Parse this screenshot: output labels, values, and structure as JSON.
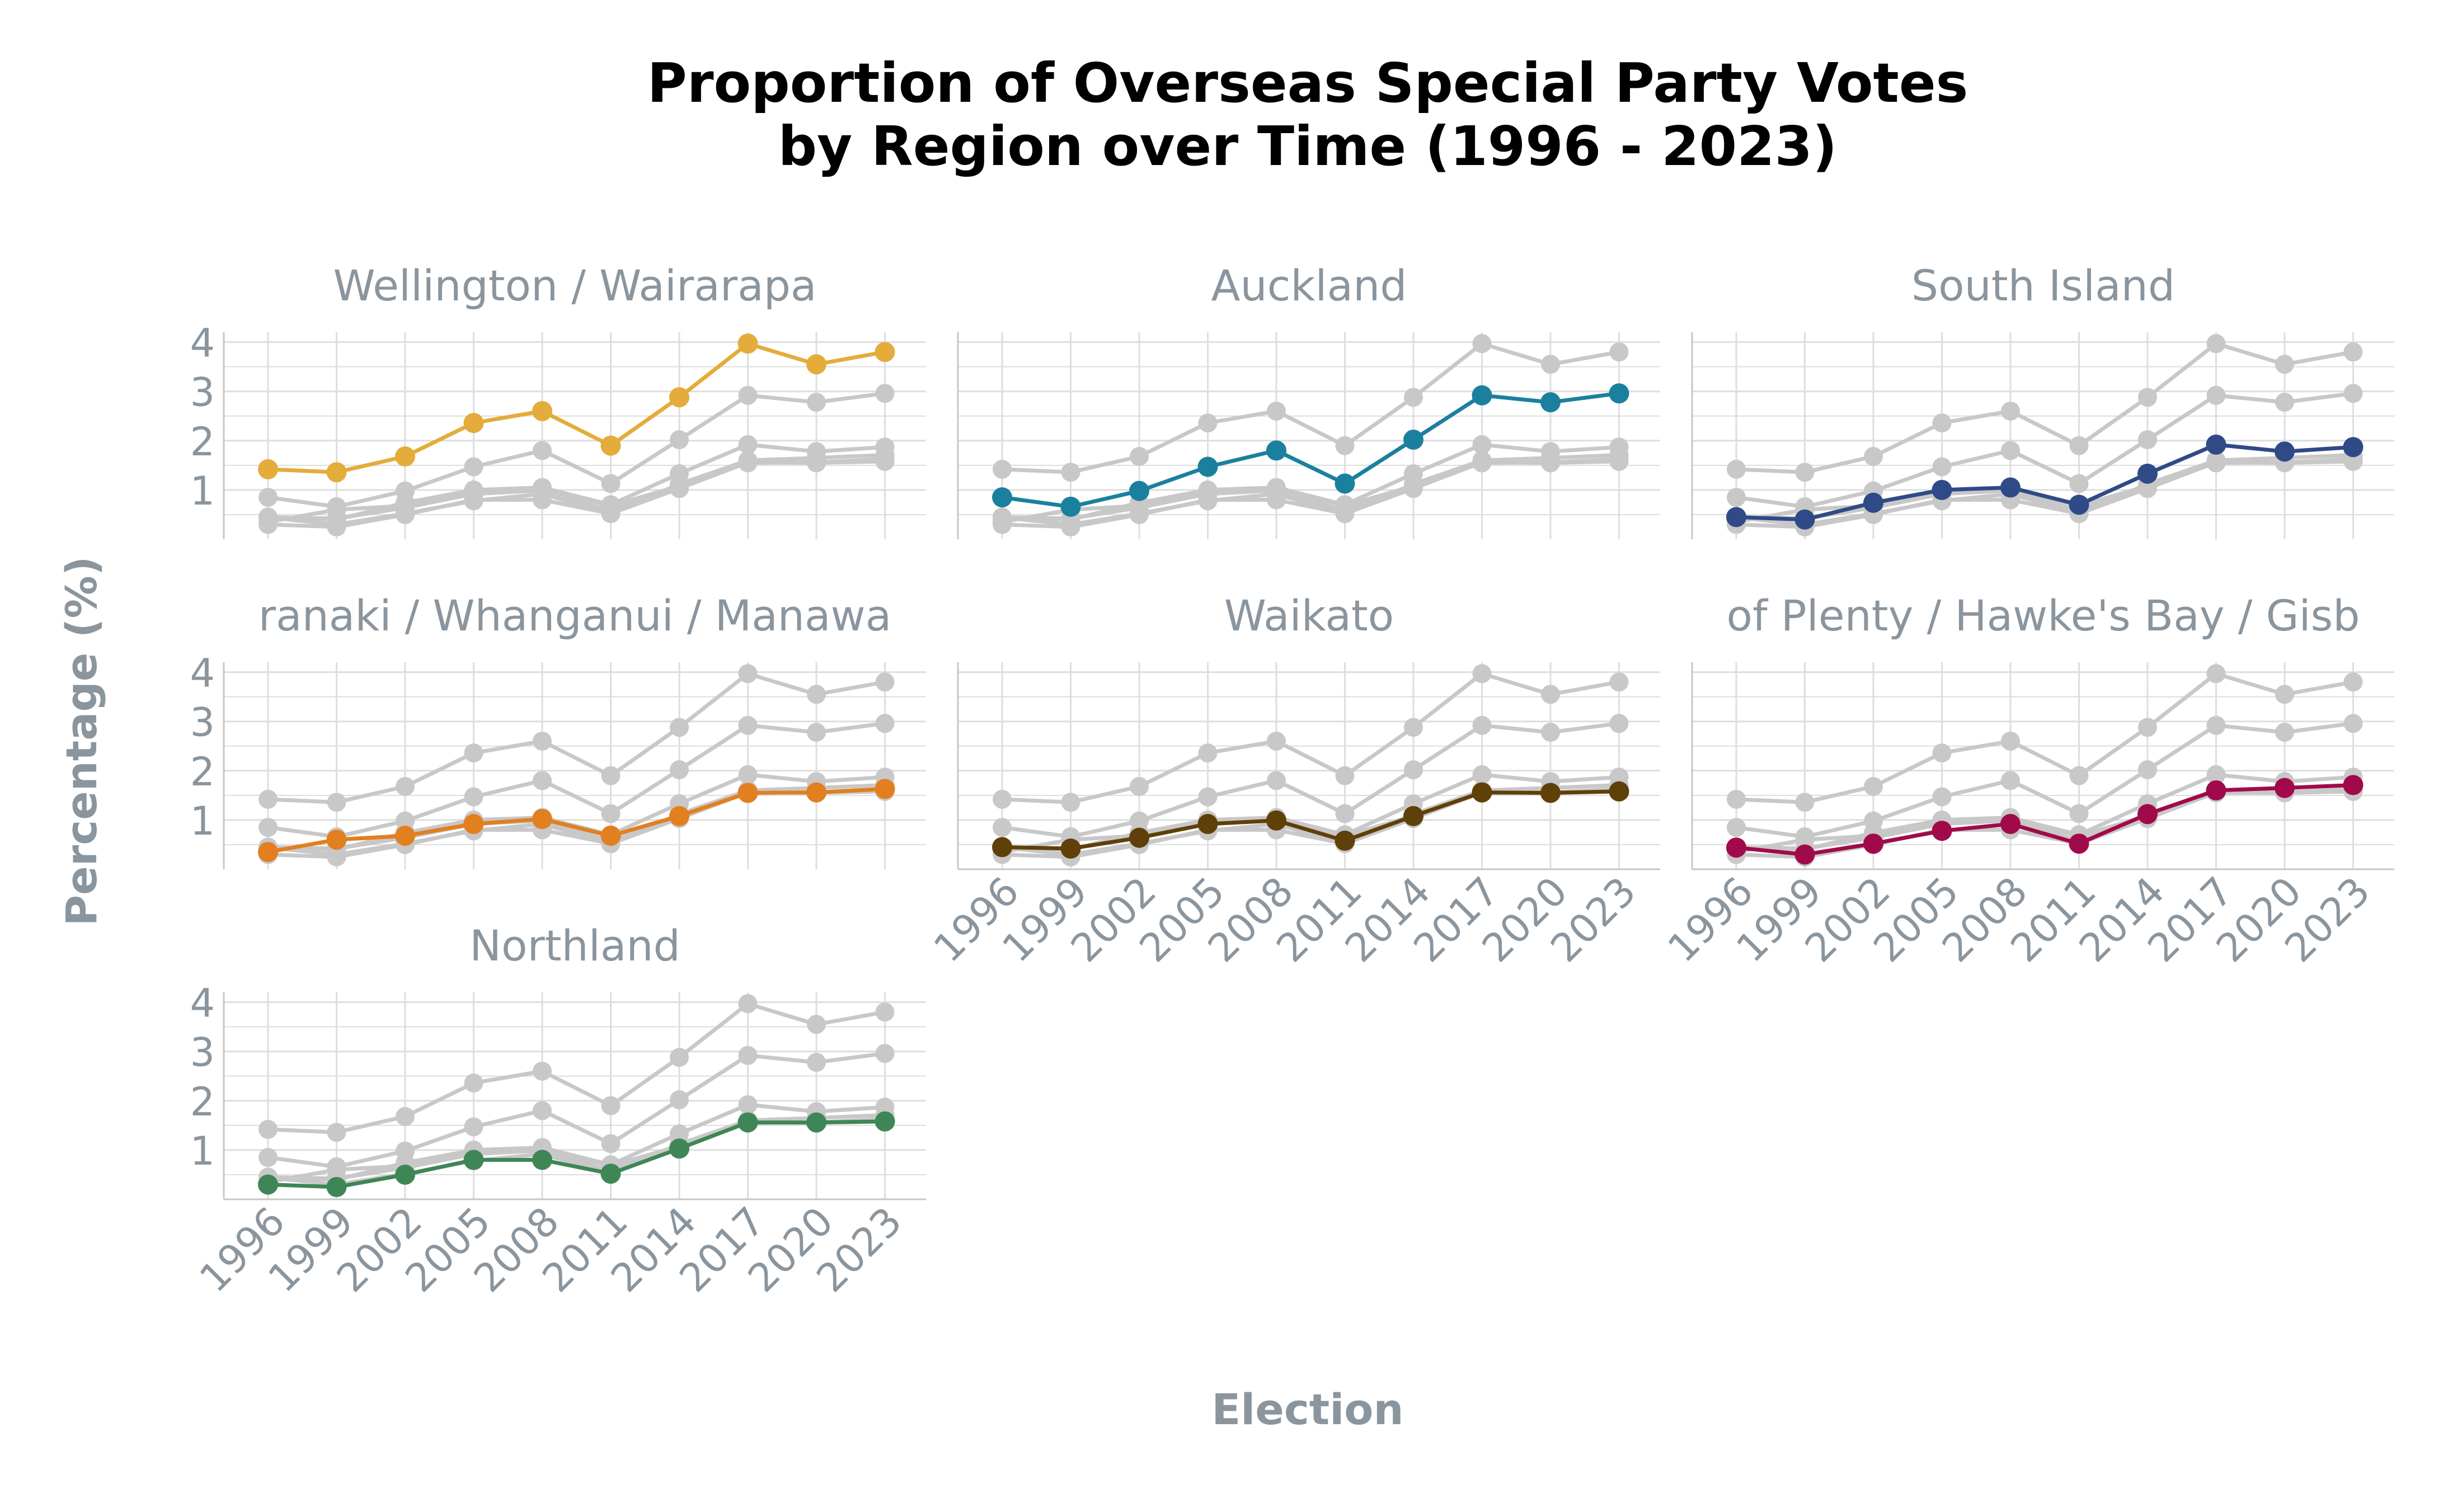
{
  "chart_data": {
    "type": "line",
    "title_lines": [
      "Proportion of Overseas Special Party Votes",
      "by Region over Time (1996 - 2023)"
    ],
    "xlabel": "Election",
    "ylabel": "Percentage (%)",
    "x": [
      "1996",
      "1999",
      "2002",
      "2005",
      "2008",
      "2011",
      "2014",
      "2017",
      "2020",
      "2023"
    ],
    "y_ticks": [
      "1",
      "2",
      "3",
      "4"
    ],
    "ylim": [
      0,
      4.2
    ],
    "grid": true,
    "legend": "none (one panel per region, other regions shown in grey)",
    "background_series_color": "#c8c8c8",
    "series": [
      {
        "name": "Wellington / Wairarapa",
        "label_shown": "Wellington / Wairarapa",
        "color": "#e3ac3b",
        "values": [
          1.42,
          1.36,
          1.68,
          2.36,
          2.6,
          1.9,
          2.88,
          3.97,
          3.55,
          3.8
        ]
      },
      {
        "name": "Auckland",
        "label_shown": "Auckland",
        "color": "#1b809e",
        "values": [
          0.85,
          0.66,
          0.98,
          1.47,
          1.8,
          1.13,
          2.02,
          2.92,
          2.78,
          2.96
        ]
      },
      {
        "name": "South Island",
        "label_shown": "South Island",
        "color": "#2f4a87",
        "values": [
          0.45,
          0.4,
          0.74,
          1.0,
          1.05,
          0.7,
          1.33,
          1.92,
          1.78,
          1.87
        ]
      },
      {
        "name": "Taranaki / Whanganui / Manawatu",
        "label_shown": "ranaki / Whanganui / Manawa",
        "color": "#e27f1f",
        "values": [
          0.35,
          0.6,
          0.68,
          0.92,
          1.02,
          0.68,
          1.08,
          1.55,
          1.56,
          1.63
        ]
      },
      {
        "name": "Waikato",
        "label_shown": "Waikato",
        "color": "#5f4008",
        "values": [
          0.45,
          0.42,
          0.64,
          0.92,
          0.99,
          0.58,
          1.08,
          1.56,
          1.55,
          1.58
        ]
      },
      {
        "name": "Bay of Plenty / Hawke's Bay / Gisborne",
        "label_shown": "of Plenty / Hawke's Bay / Gisb",
        "color": "#a10a4a",
        "values": [
          0.44,
          0.3,
          0.52,
          0.78,
          0.92,
          0.52,
          1.12,
          1.6,
          1.65,
          1.71
        ]
      },
      {
        "name": "Northland",
        "label_shown": "Northland",
        "color": "#3f8656",
        "values": [
          0.3,
          0.25,
          0.5,
          0.8,
          0.8,
          0.52,
          1.03,
          1.56,
          1.56,
          1.58
        ]
      }
    ],
    "colors": {
      "title": "#000000",
      "strip_text": "#8a959e",
      "axis_text": "#8a959e",
      "axis_title": "#8a959e",
      "grid": "#dedede",
      "axis_line": "#c7c7c7"
    }
  }
}
